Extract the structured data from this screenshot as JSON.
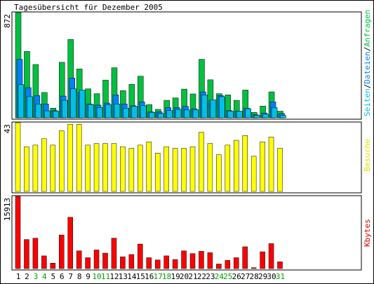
{
  "chart_data": [
    {
      "type": "bar",
      "title": "Tagesübersicht für Dezember 2005",
      "ylabel_max": "872",
      "legend": [
        {
          "text": "Seiten",
          "color": "#00c0e8"
        },
        {
          "text": "Dateien",
          "color": "#0080ff"
        },
        {
          "text": "Anfragen",
          "color": "#00c040"
        }
      ],
      "ymax": 872,
      "categories": [
        "1",
        "2",
        "3",
        "4",
        "5",
        "6",
        "7",
        "8",
        "9",
        "10",
        "11",
        "12",
        "13",
        "14",
        "15",
        "16",
        "17",
        "18",
        "19",
        "20",
        "21",
        "22",
        "23",
        "24",
        "25",
        "26",
        "27",
        "28",
        "29",
        "30",
        "31"
      ],
      "weekend_days": [
        "3",
        "4",
        "10",
        "11",
        "17",
        "18",
        "24",
        "25",
        "31"
      ],
      "series": [
        {
          "name": "Anfragen",
          "color": "#00c040",
          "values": [
            872,
            550,
            442,
            210,
            80,
            460,
            650,
            405,
            240,
            200,
            313,
            415,
            225,
            278,
            345,
            110,
            70,
            145,
            165,
            238,
            198,
            485,
            315,
            200,
            190,
            145,
            230,
            45,
            97,
            215,
            55
          ]
        },
        {
          "name": "Dateien",
          "color": "#0080ff",
          "values": [
            485,
            250,
            185,
            115,
            60,
            180,
            330,
            210,
            115,
            105,
            122,
            190,
            115,
            100,
            132,
            50,
            50,
            85,
            85,
            95,
            75,
            215,
            145,
            185,
            60,
            55,
            80,
            25,
            40,
            132,
            35
          ]
        },
        {
          "name": "Seiten",
          "color": "#00c0e8",
          "values": [
            275,
            175,
            115,
            58,
            55,
            145,
            240,
            230,
            110,
            85,
            110,
            115,
            80,
            95,
            100,
            45,
            35,
            60,
            70,
            65,
            65,
            190,
            150,
            175,
            55,
            55,
            75,
            20,
            30,
            85,
            20
          ]
        }
      ]
    },
    {
      "type": "bar",
      "ylabel_max": "43",
      "legend": [
        {
          "text": "Besuche",
          "color": "#e0e000"
        }
      ],
      "ymax": 43,
      "series": [
        {
          "name": "Besuche",
          "color": "#ffff00",
          "values": [
            43,
            28,
            29,
            33,
            29,
            38,
            42,
            42,
            29,
            30,
            30,
            30,
            28,
            27,
            29,
            31,
            24,
            28,
            27,
            27,
            28,
            37,
            30,
            23,
            29,
            32,
            35,
            22,
            31,
            34,
            27
          ]
        }
      ]
    },
    {
      "type": "bar",
      "ylabel_max": "15913",
      "legend": [
        {
          "text": "Kbytes",
          "color": "#e00000"
        }
      ],
      "ymax": 15913,
      "series": [
        {
          "name": "Kbytes",
          "color": "#ff0000",
          "values": [
            15913,
            6400,
            6700,
            2800,
            1200,
            7400,
            11300,
            3900,
            2400,
            4100,
            3400,
            6700,
            2600,
            3100,
            5400,
            2400,
            1900,
            2800,
            2000,
            3900,
            3300,
            3800,
            3500,
            1000,
            1800,
            2400,
            4800,
            200,
            3700,
            5500,
            1500
          ]
        }
      ]
    }
  ]
}
